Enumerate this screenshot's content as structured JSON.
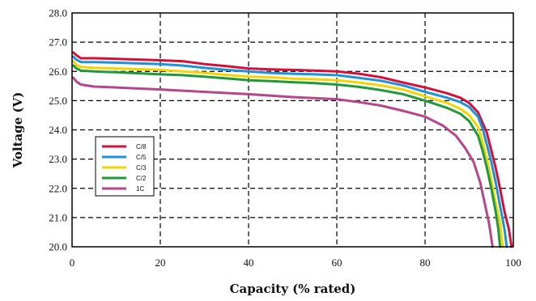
{
  "chart_data": {
    "type": "line",
    "title": "",
    "xlabel": "Capacity (% rated)",
    "ylabel": "Voltage (V)",
    "xlim": [
      0,
      100
    ],
    "ylim": [
      20.0,
      28.0
    ],
    "x_ticks": [
      "0",
      "20",
      "40",
      "60",
      "80",
      "100"
    ],
    "y_ticks": [
      "20.0",
      "21.0",
      "22.0",
      "23.0",
      "24.0",
      "25.0",
      "26.0",
      "27.0",
      "28.0"
    ],
    "grid": true,
    "legend_position": "left-middle",
    "series": [
      {
        "name": "C/8",
        "color": "#d4103a",
        "points": [
          [
            0.3,
            26.65
          ],
          [
            1,
            26.55
          ],
          [
            2,
            26.45
          ],
          [
            5,
            26.45
          ],
          [
            10,
            26.43
          ],
          [
            20,
            26.38
          ],
          [
            25,
            26.35
          ],
          [
            30,
            26.25
          ],
          [
            35,
            26.18
          ],
          [
            40,
            26.1
          ],
          [
            45,
            26.07
          ],
          [
            50,
            26.05
          ],
          [
            55,
            26.03
          ],
          [
            60,
            26.0
          ],
          [
            65,
            25.92
          ],
          [
            70,
            25.8
          ],
          [
            75,
            25.62
          ],
          [
            80,
            25.45
          ],
          [
            85,
            25.25
          ],
          [
            88,
            25.1
          ],
          [
            90,
            24.92
          ],
          [
            92,
            24.6
          ],
          [
            94,
            23.9
          ],
          [
            95,
            23.3
          ],
          [
            96,
            22.7
          ],
          [
            97,
            22.0
          ],
          [
            98,
            21.2
          ],
          [
            99,
            20.6
          ],
          [
            99.6,
            20.0
          ]
        ]
      },
      {
        "name": "C/5",
        "color": "#1a93d8",
        "points": [
          [
            0.3,
            26.5
          ],
          [
            1,
            26.4
          ],
          [
            2,
            26.32
          ],
          [
            5,
            26.32
          ],
          [
            10,
            26.3
          ],
          [
            20,
            26.25
          ],
          [
            25,
            26.2
          ],
          [
            30,
            26.12
          ],
          [
            35,
            26.05
          ],
          [
            40,
            26.0
          ],
          [
            45,
            25.95
          ],
          [
            50,
            25.92
          ],
          [
            55,
            25.9
          ],
          [
            60,
            25.87
          ],
          [
            65,
            25.78
          ],
          [
            70,
            25.68
          ],
          [
            75,
            25.52
          ],
          [
            80,
            25.3
          ],
          [
            85,
            25.1
          ],
          [
            88,
            24.95
          ],
          [
            90,
            24.78
          ],
          [
            92,
            24.45
          ],
          [
            93,
            24.05
          ],
          [
            94,
            23.5
          ],
          [
            95,
            22.9
          ],
          [
            96,
            22.2
          ],
          [
            97,
            21.4
          ],
          [
            98,
            20.6
          ],
          [
            98.5,
            20.0
          ]
        ]
      },
      {
        "name": "C/3",
        "color": "#f2d400",
        "points": [
          [
            0.3,
            26.35
          ],
          [
            1,
            26.22
          ],
          [
            2,
            26.15
          ],
          [
            5,
            26.12
          ],
          [
            10,
            26.1
          ],
          [
            20,
            26.05
          ],
          [
            25,
            26.0
          ],
          [
            30,
            25.95
          ],
          [
            35,
            25.88
          ],
          [
            40,
            25.82
          ],
          [
            45,
            25.8
          ],
          [
            50,
            25.75
          ],
          [
            55,
            25.73
          ],
          [
            60,
            25.7
          ],
          [
            65,
            25.62
          ],
          [
            70,
            25.52
          ],
          [
            75,
            25.38
          ],
          [
            80,
            25.15
          ],
          [
            85,
            24.92
          ],
          [
            88,
            24.72
          ],
          [
            90,
            24.5
          ],
          [
            92,
            24.1
          ],
          [
            93,
            23.6
          ],
          [
            94,
            23.0
          ],
          [
            95,
            22.3
          ],
          [
            96,
            21.5
          ],
          [
            97,
            20.8
          ],
          [
            97.6,
            20.0
          ]
        ]
      },
      {
        "name": "C/2",
        "color": "#1e9a3a",
        "points": [
          [
            0.3,
            26.2
          ],
          [
            1,
            26.1
          ],
          [
            2,
            26.03
          ],
          [
            5,
            26.0
          ],
          [
            10,
            25.97
          ],
          [
            20,
            25.9
          ],
          [
            25,
            25.87
          ],
          [
            30,
            25.82
          ],
          [
            35,
            25.76
          ],
          [
            40,
            25.7
          ],
          [
            45,
            25.67
          ],
          [
            50,
            25.63
          ],
          [
            55,
            25.6
          ],
          [
            60,
            25.55
          ],
          [
            65,
            25.47
          ],
          [
            70,
            25.36
          ],
          [
            75,
            25.22
          ],
          [
            80,
            25.0
          ],
          [
            85,
            24.75
          ],
          [
            88,
            24.55
          ],
          [
            90,
            24.3
          ],
          [
            92,
            23.8
          ],
          [
            93,
            23.3
          ],
          [
            94,
            22.7
          ],
          [
            95,
            22.0
          ],
          [
            96,
            21.2
          ],
          [
            96.6,
            20.6
          ],
          [
            97,
            20.0
          ]
        ]
      },
      {
        "name": "1C",
        "color": "#b5468a",
        "points": [
          [
            0.3,
            25.78
          ],
          [
            1,
            25.65
          ],
          [
            2,
            25.55
          ],
          [
            5,
            25.48
          ],
          [
            10,
            25.45
          ],
          [
            20,
            25.38
          ],
          [
            30,
            25.3
          ],
          [
            40,
            25.22
          ],
          [
            50,
            25.12
          ],
          [
            60,
            25.05
          ],
          [
            65,
            24.95
          ],
          [
            70,
            24.83
          ],
          [
            75,
            24.65
          ],
          [
            80,
            24.45
          ],
          [
            84,
            24.15
          ],
          [
            87,
            23.8
          ],
          [
            89,
            23.4
          ],
          [
            91,
            22.9
          ],
          [
            92.5,
            22.2
          ],
          [
            93.5,
            21.5
          ],
          [
            94.5,
            20.8
          ],
          [
            95.3,
            20.0
          ]
        ]
      }
    ]
  }
}
